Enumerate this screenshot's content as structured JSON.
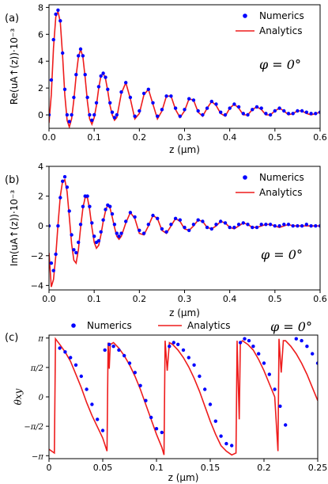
{
  "chart_data": [
    {
      "type": "line",
      "panel_label": "(a)",
      "ylabel": "Re(uA↑(z))·10⁻³",
      "xlabel": "z (μm)",
      "annotation": "φ = 0°",
      "xlim": [
        0,
        0.6
      ],
      "ylim": [
        -1,
        8.2
      ],
      "xticks": [
        "0.0",
        "0.1",
        "0.2",
        "0.3",
        "0.4",
        "0.5",
        "0.6"
      ],
      "yticks": [
        "0",
        "2",
        "4",
        "6",
        "8"
      ],
      "legend_position": "top-right",
      "series": [
        {
          "name": "Numerics",
          "style": "points",
          "color": "#0000ff",
          "x": [
            0,
            0.005,
            0.01,
            0.015,
            0.02,
            0.025,
            0.03,
            0.035,
            0.04,
            0.045,
            0.05,
            0.055,
            0.06,
            0.065,
            0.07,
            0.075,
            0.08,
            0.085,
            0.09,
            0.095,
            0.1,
            0.105,
            0.11,
            0.115,
            0.12,
            0.125,
            0.13,
            0.135,
            0.14,
            0.145,
            0.15,
            0.16,
            0.17,
            0.18,
            0.19,
            0.2,
            0.21,
            0.22,
            0.23,
            0.24,
            0.25,
            0.26,
            0.27,
            0.28,
            0.29,
            0.3,
            0.31,
            0.32,
            0.33,
            0.34,
            0.35,
            0.36,
            0.37,
            0.38,
            0.39,
            0.4,
            0.41,
            0.42,
            0.43,
            0.44,
            0.45,
            0.46,
            0.47,
            0.48,
            0.49,
            0.5,
            0.51,
            0.52,
            0.53,
            0.54,
            0.55,
            0.56,
            0.57,
            0.58,
            0.59,
            0.6
          ],
          "y": [
            0,
            2.6,
            5.6,
            7.5,
            7.8,
            7.0,
            4.6,
            1.9,
            0.0,
            -0.5,
            0.0,
            1.3,
            3.0,
            4.4,
            4.9,
            4.4,
            3.0,
            1.3,
            0.0,
            -0.4,
            0.0,
            0.9,
            2.1,
            2.9,
            3.1,
            2.8,
            1.9,
            0.9,
            0.2,
            -0.2,
            0.0,
            1.7,
            2.4,
            1.3,
            -0.1,
            0.3,
            1.6,
            1.9,
            0.9,
            -0.1,
            0.4,
            1.4,
            1.4,
            0.5,
            -0.1,
            0.4,
            1.2,
            1.1,
            0.3,
            0.0,
            0.5,
            1.0,
            0.8,
            0.2,
            0.0,
            0.5,
            0.8,
            0.6,
            0.1,
            0.0,
            0.4,
            0.6,
            0.5,
            0.1,
            0.0,
            0.3,
            0.5,
            0.3,
            0.1,
            0.1,
            0.3,
            0.3,
            0.2,
            0.1,
            0.1,
            0.2
          ]
        },
        {
          "name": "Analytics",
          "style": "line",
          "color": "#ee1c1c",
          "x": [
            0,
            0.005,
            0.01,
            0.015,
            0.02,
            0.025,
            0.03,
            0.035,
            0.04,
            0.045,
            0.05,
            0.055,
            0.06,
            0.065,
            0.07,
            0.075,
            0.08,
            0.085,
            0.09,
            0.095,
            0.1,
            0.105,
            0.11,
            0.115,
            0.12,
            0.125,
            0.13,
            0.135,
            0.14,
            0.145,
            0.15,
            0.16,
            0.17,
            0.18,
            0.19,
            0.2,
            0.21,
            0.22,
            0.23,
            0.24,
            0.25,
            0.26,
            0.27,
            0.28,
            0.29,
            0.3,
            0.31,
            0.32,
            0.33,
            0.34,
            0.35,
            0.36,
            0.37,
            0.38,
            0.39,
            0.4,
            0.41,
            0.42,
            0.43,
            0.44,
            0.45,
            0.46,
            0.47,
            0.48,
            0.49,
            0.5,
            0.51,
            0.52,
            0.53,
            0.54,
            0.55,
            0.56,
            0.57,
            0.58,
            0.59,
            0.6
          ],
          "y": [
            -0.6,
            1.5,
            5.0,
            7.3,
            7.7,
            6.9,
            4.4,
            1.5,
            -0.4,
            -0.9,
            -0.3,
            1.1,
            2.9,
            4.3,
            4.9,
            4.3,
            2.8,
            1.0,
            -0.3,
            -0.7,
            -0.2,
            0.7,
            2.0,
            2.9,
            3.1,
            2.7,
            1.8,
            0.7,
            0.0,
            -0.4,
            -0.2,
            1.6,
            2.4,
            1.2,
            -0.3,
            0.1,
            1.5,
            1.9,
            0.8,
            -0.3,
            0.3,
            1.4,
            1.4,
            0.4,
            -0.2,
            0.3,
            1.2,
            1.1,
            0.2,
            -0.1,
            0.5,
            1.0,
            0.7,
            0.1,
            -0.1,
            0.5,
            0.8,
            0.5,
            0.0,
            0.0,
            0.4,
            0.6,
            0.4,
            0.0,
            0.0,
            0.3,
            0.5,
            0.3,
            0.0,
            0.1,
            0.3,
            0.3,
            0.1,
            0.0,
            0.1,
            0.2
          ]
        }
      ]
    },
    {
      "type": "line",
      "panel_label": "(b)",
      "ylabel": "Im(uA↑(z))·10⁻³",
      "xlabel": "z (μm)",
      "annotation": "φ = 0°",
      "xlim": [
        0,
        0.6
      ],
      "ylim": [
        -4.3,
        4
      ],
      "xticks": [
        "0.0",
        "0.1",
        "0.2",
        "0.3",
        "0.4",
        "0.5",
        "0.6"
      ],
      "yticks": [
        "−4",
        "−2",
        "0",
        "2",
        "4"
      ],
      "legend_position": "top-right",
      "series": [
        {
          "name": "Numerics",
          "style": "points",
          "color": "#0000ff",
          "x": [
            0,
            0.005,
            0.01,
            0.015,
            0.02,
            0.025,
            0.03,
            0.035,
            0.04,
            0.045,
            0.05,
            0.055,
            0.06,
            0.065,
            0.07,
            0.075,
            0.08,
            0.085,
            0.09,
            0.095,
            0.1,
            0.105,
            0.11,
            0.115,
            0.12,
            0.125,
            0.13,
            0.135,
            0.14,
            0.145,
            0.15,
            0.155,
            0.16,
            0.17,
            0.18,
            0.19,
            0.2,
            0.21,
            0.22,
            0.23,
            0.24,
            0.25,
            0.26,
            0.27,
            0.28,
            0.29,
            0.3,
            0.31,
            0.32,
            0.33,
            0.34,
            0.35,
            0.36,
            0.37,
            0.38,
            0.39,
            0.4,
            0.41,
            0.42,
            0.43,
            0.44,
            0.45,
            0.46,
            0.47,
            0.48,
            0.49,
            0.5,
            0.51,
            0.52,
            0.53,
            0.54,
            0.55,
            0.56,
            0.57,
            0.58,
            0.59,
            0.6
          ],
          "y": [
            0,
            -2.5,
            -3.0,
            -1.9,
            0.0,
            1.9,
            3.0,
            3.3,
            2.6,
            1.0,
            -0.6,
            -1.6,
            -1.8,
            -1.1,
            0.1,
            1.3,
            2.0,
            2.0,
            1.3,
            0.2,
            -0.7,
            -1.1,
            -1.0,
            -0.4,
            0.4,
            1.1,
            1.4,
            1.3,
            0.8,
            0.1,
            -0.5,
            -0.7,
            -0.5,
            0.3,
            0.9,
            0.6,
            -0.3,
            -0.5,
            0.1,
            0.7,
            0.5,
            -0.2,
            -0.4,
            0.1,
            0.5,
            0.4,
            -0.1,
            -0.3,
            0.1,
            0.4,
            0.3,
            -0.1,
            -0.2,
            0.1,
            0.3,
            0.2,
            -0.1,
            -0.1,
            0.1,
            0.2,
            0.1,
            -0.1,
            -0.1,
            0.1,
            0.1,
            0.1,
            0.0,
            0.0,
            0.1,
            0.1,
            0.0,
            0.0,
            0.0,
            0.1,
            0.0,
            0.0,
            0.0
          ]
        },
        {
          "name": "Analytics",
          "style": "line",
          "color": "#ee1c1c",
          "x": [
            0,
            0.005,
            0.01,
            0.015,
            0.02,
            0.025,
            0.03,
            0.035,
            0.04,
            0.045,
            0.05,
            0.055,
            0.06,
            0.065,
            0.07,
            0.075,
            0.08,
            0.085,
            0.09,
            0.095,
            0.1,
            0.105,
            0.11,
            0.115,
            0.12,
            0.125,
            0.13,
            0.135,
            0.14,
            0.145,
            0.15,
            0.155,
            0.16,
            0.17,
            0.18,
            0.19,
            0.2,
            0.21,
            0.22,
            0.23,
            0.24,
            0.25,
            0.26,
            0.27,
            0.28,
            0.29,
            0.3,
            0.31,
            0.32,
            0.33,
            0.34,
            0.35,
            0.36,
            0.37,
            0.38,
            0.39,
            0.4,
            0.41,
            0.42,
            0.43,
            0.44,
            0.45,
            0.46,
            0.47,
            0.48,
            0.49,
            0.5,
            0.51,
            0.52,
            0.53,
            0.54,
            0.55,
            0.56,
            0.57,
            0.58,
            0.59,
            0.6
          ],
          "y": [
            -1.8,
            -4.1,
            -3.6,
            -2.0,
            0.1,
            2.0,
            3.0,
            3.1,
            2.3,
            0.6,
            -1.2,
            -2.3,
            -2.5,
            -1.6,
            -0.1,
            1.2,
            1.9,
            1.9,
            1.1,
            -0.1,
            -1.1,
            -1.5,
            -1.3,
            -0.6,
            0.3,
            1.0,
            1.4,
            1.2,
            0.6,
            -0.1,
            -0.7,
            -0.9,
            -0.7,
            0.2,
            0.9,
            0.5,
            -0.5,
            -0.6,
            0.0,
            0.7,
            0.5,
            -0.3,
            -0.5,
            0.0,
            0.5,
            0.3,
            -0.2,
            -0.3,
            0.0,
            0.4,
            0.3,
            -0.1,
            -0.2,
            0.0,
            0.3,
            0.2,
            -0.1,
            -0.2,
            0.0,
            0.2,
            0.1,
            -0.1,
            -0.1,
            0.0,
            0.1,
            0.1,
            0.0,
            -0.1,
            0.0,
            0.1,
            0.0,
            0.0,
            0.0,
            0.0,
            0.0,
            0.0,
            0.0
          ]
        }
      ]
    },
    {
      "type": "line",
      "panel_label": "(c)",
      "ylabel": "θxy",
      "xlabel": "z (μm)",
      "annotation": "φ = 0°",
      "xlim": [
        0,
        0.25
      ],
      "ylim": [
        -3.3,
        3.3
      ],
      "xticks": [
        "0",
        "0.05",
        "0.1",
        "0.15",
        "0.2",
        "0.25"
      ],
      "yticks": [
        "−π",
        "−π/2",
        "0",
        "π/2",
        "π"
      ],
      "legend_position": "top",
      "series": [
        {
          "name": "Numerics",
          "style": "points",
          "color": "#0000ff",
          "x": [
            0.01,
            0.015,
            0.02,
            0.025,
            0.03,
            0.035,
            0.04,
            0.045,
            0.05,
            0.052,
            0.056,
            0.06,
            0.065,
            0.07,
            0.075,
            0.08,
            0.085,
            0.09,
            0.095,
            0.1,
            0.105,
            0.112,
            0.116,
            0.12,
            0.125,
            0.13,
            0.135,
            0.14,
            0.145,
            0.15,
            0.155,
            0.16,
            0.165,
            0.17,
            0.178,
            0.182,
            0.186,
            0.19,
            0.195,
            0.2,
            0.205,
            0.21,
            0.215,
            0.22,
            0.23,
            0.235,
            0.24,
            0.245,
            0.25
          ],
          "y": [
            2.6,
            2.4,
            2.1,
            1.7,
            1.1,
            0.4,
            -0.4,
            -1.2,
            -1.8,
            2.5,
            2.8,
            2.7,
            2.5,
            2.2,
            1.8,
            1.3,
            0.6,
            -0.2,
            -1.1,
            -1.7,
            -1.9,
            2.7,
            2.9,
            2.8,
            2.5,
            2.1,
            1.7,
            1.1,
            0.4,
            -0.4,
            -1.3,
            -2.1,
            -2.5,
            -2.6,
            2.9,
            3.1,
            3.0,
            2.7,
            2.3,
            1.8,
            1.2,
            0.4,
            -0.5,
            -1.5,
            3.1,
            3.0,
            2.7,
            2.3,
            1.8
          ]
        },
        {
          "name": "Analytics",
          "style": "line",
          "color": "#ee1c1c",
          "x": [
            0,
            0.005,
            0.006,
            0.01,
            0.015,
            0.02,
            0.025,
            0.03,
            0.035,
            0.04,
            0.045,
            0.05,
            0.054,
            0.055,
            0.056,
            0.057,
            0.06,
            0.065,
            0.07,
            0.075,
            0.08,
            0.085,
            0.09,
            0.095,
            0.1,
            0.105,
            0.107,
            0.108,
            0.11,
            0.112,
            0.115,
            0.12,
            0.125,
            0.13,
            0.135,
            0.14,
            0.145,
            0.15,
            0.155,
            0.16,
            0.165,
            0.17,
            0.174,
            0.175,
            0.177,
            0.178,
            0.18,
            0.185,
            0.19,
            0.195,
            0.2,
            0.205,
            0.21,
            0.213,
            0.214,
            0.216,
            0.218,
            0.22,
            0.225,
            0.23,
            0.235,
            0.24,
            0.245,
            0.25
          ],
          "y": [
            -2.8,
            -3.0,
            3.1,
            2.8,
            2.4,
            1.9,
            1.2,
            0.5,
            -0.3,
            -1.0,
            -1.6,
            -2.2,
            -2.9,
            2.9,
            1.5,
            2.8,
            2.9,
            2.6,
            2.2,
            1.7,
            1.1,
            0.4,
            -0.4,
            -1.2,
            -2.0,
            -2.7,
            -3.1,
            3.0,
            1.4,
            2.9,
            2.8,
            2.5,
            2.1,
            1.6,
            1.0,
            0.3,
            -0.5,
            -1.3,
            -2.0,
            -2.6,
            -2.9,
            -3.1,
            -3.0,
            3.0,
            -1.2,
            2.9,
            3.0,
            2.8,
            2.5,
            2.0,
            1.4,
            0.7,
            0.0,
            -2.9,
            3.1,
            1.3,
            3.0,
            3.0,
            2.7,
            2.3,
            1.8,
            1.2,
            0.5,
            -0.2
          ]
        }
      ]
    }
  ]
}
